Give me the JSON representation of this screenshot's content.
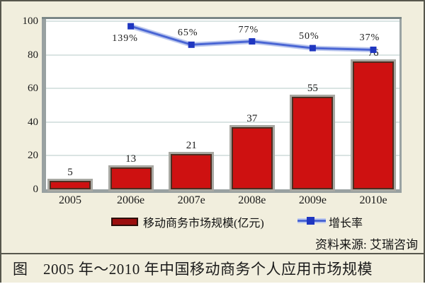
{
  "chart_data": {
    "type": "bar+line",
    "title": "",
    "categories": [
      "2005",
      "2006e",
      "2007e",
      "2008e",
      "2009e",
      "2010e"
    ],
    "series": [
      {
        "name": "移动商务市场规模(亿元)",
        "type": "bar",
        "values": [
          5,
          13,
          21,
          37,
          55,
          76
        ],
        "color": "#CE1111"
      },
      {
        "name": "增长率",
        "type": "line",
        "labels": [
          "139%",
          "65%",
          "77%",
          "50%",
          "37%"
        ],
        "starts_at_category_index": 1,
        "display_values_left_axis": [
          97,
          86,
          88,
          84,
          83
        ],
        "label_positions": [
          "below",
          "above",
          "above",
          "above",
          "above"
        ],
        "color": "#4A66D4"
      }
    ],
    "xlabel": "",
    "ylabel": "",
    "ylim": [
      0,
      100
    ],
    "yticks": [
      0,
      20,
      40,
      60,
      80,
      100
    ],
    "grid": true,
    "legend_position": "bottom"
  },
  "legend": {
    "bar_label": "移动商务市场规模(亿元)",
    "line_label": "增长率"
  },
  "source": "资料来源: 艾瑞咨询",
  "caption": "图　2005 年～2010 年中国移动商务个人应用市场规模",
  "colors": {
    "background": "#F1EEDD",
    "bar_fill": "#CE1111",
    "bar_border": "#4F2C1F",
    "line": "#4A66D4",
    "line_marker": "#1F36C0",
    "gridline": "#DAE4E3",
    "axis": "#99A1A1"
  }
}
